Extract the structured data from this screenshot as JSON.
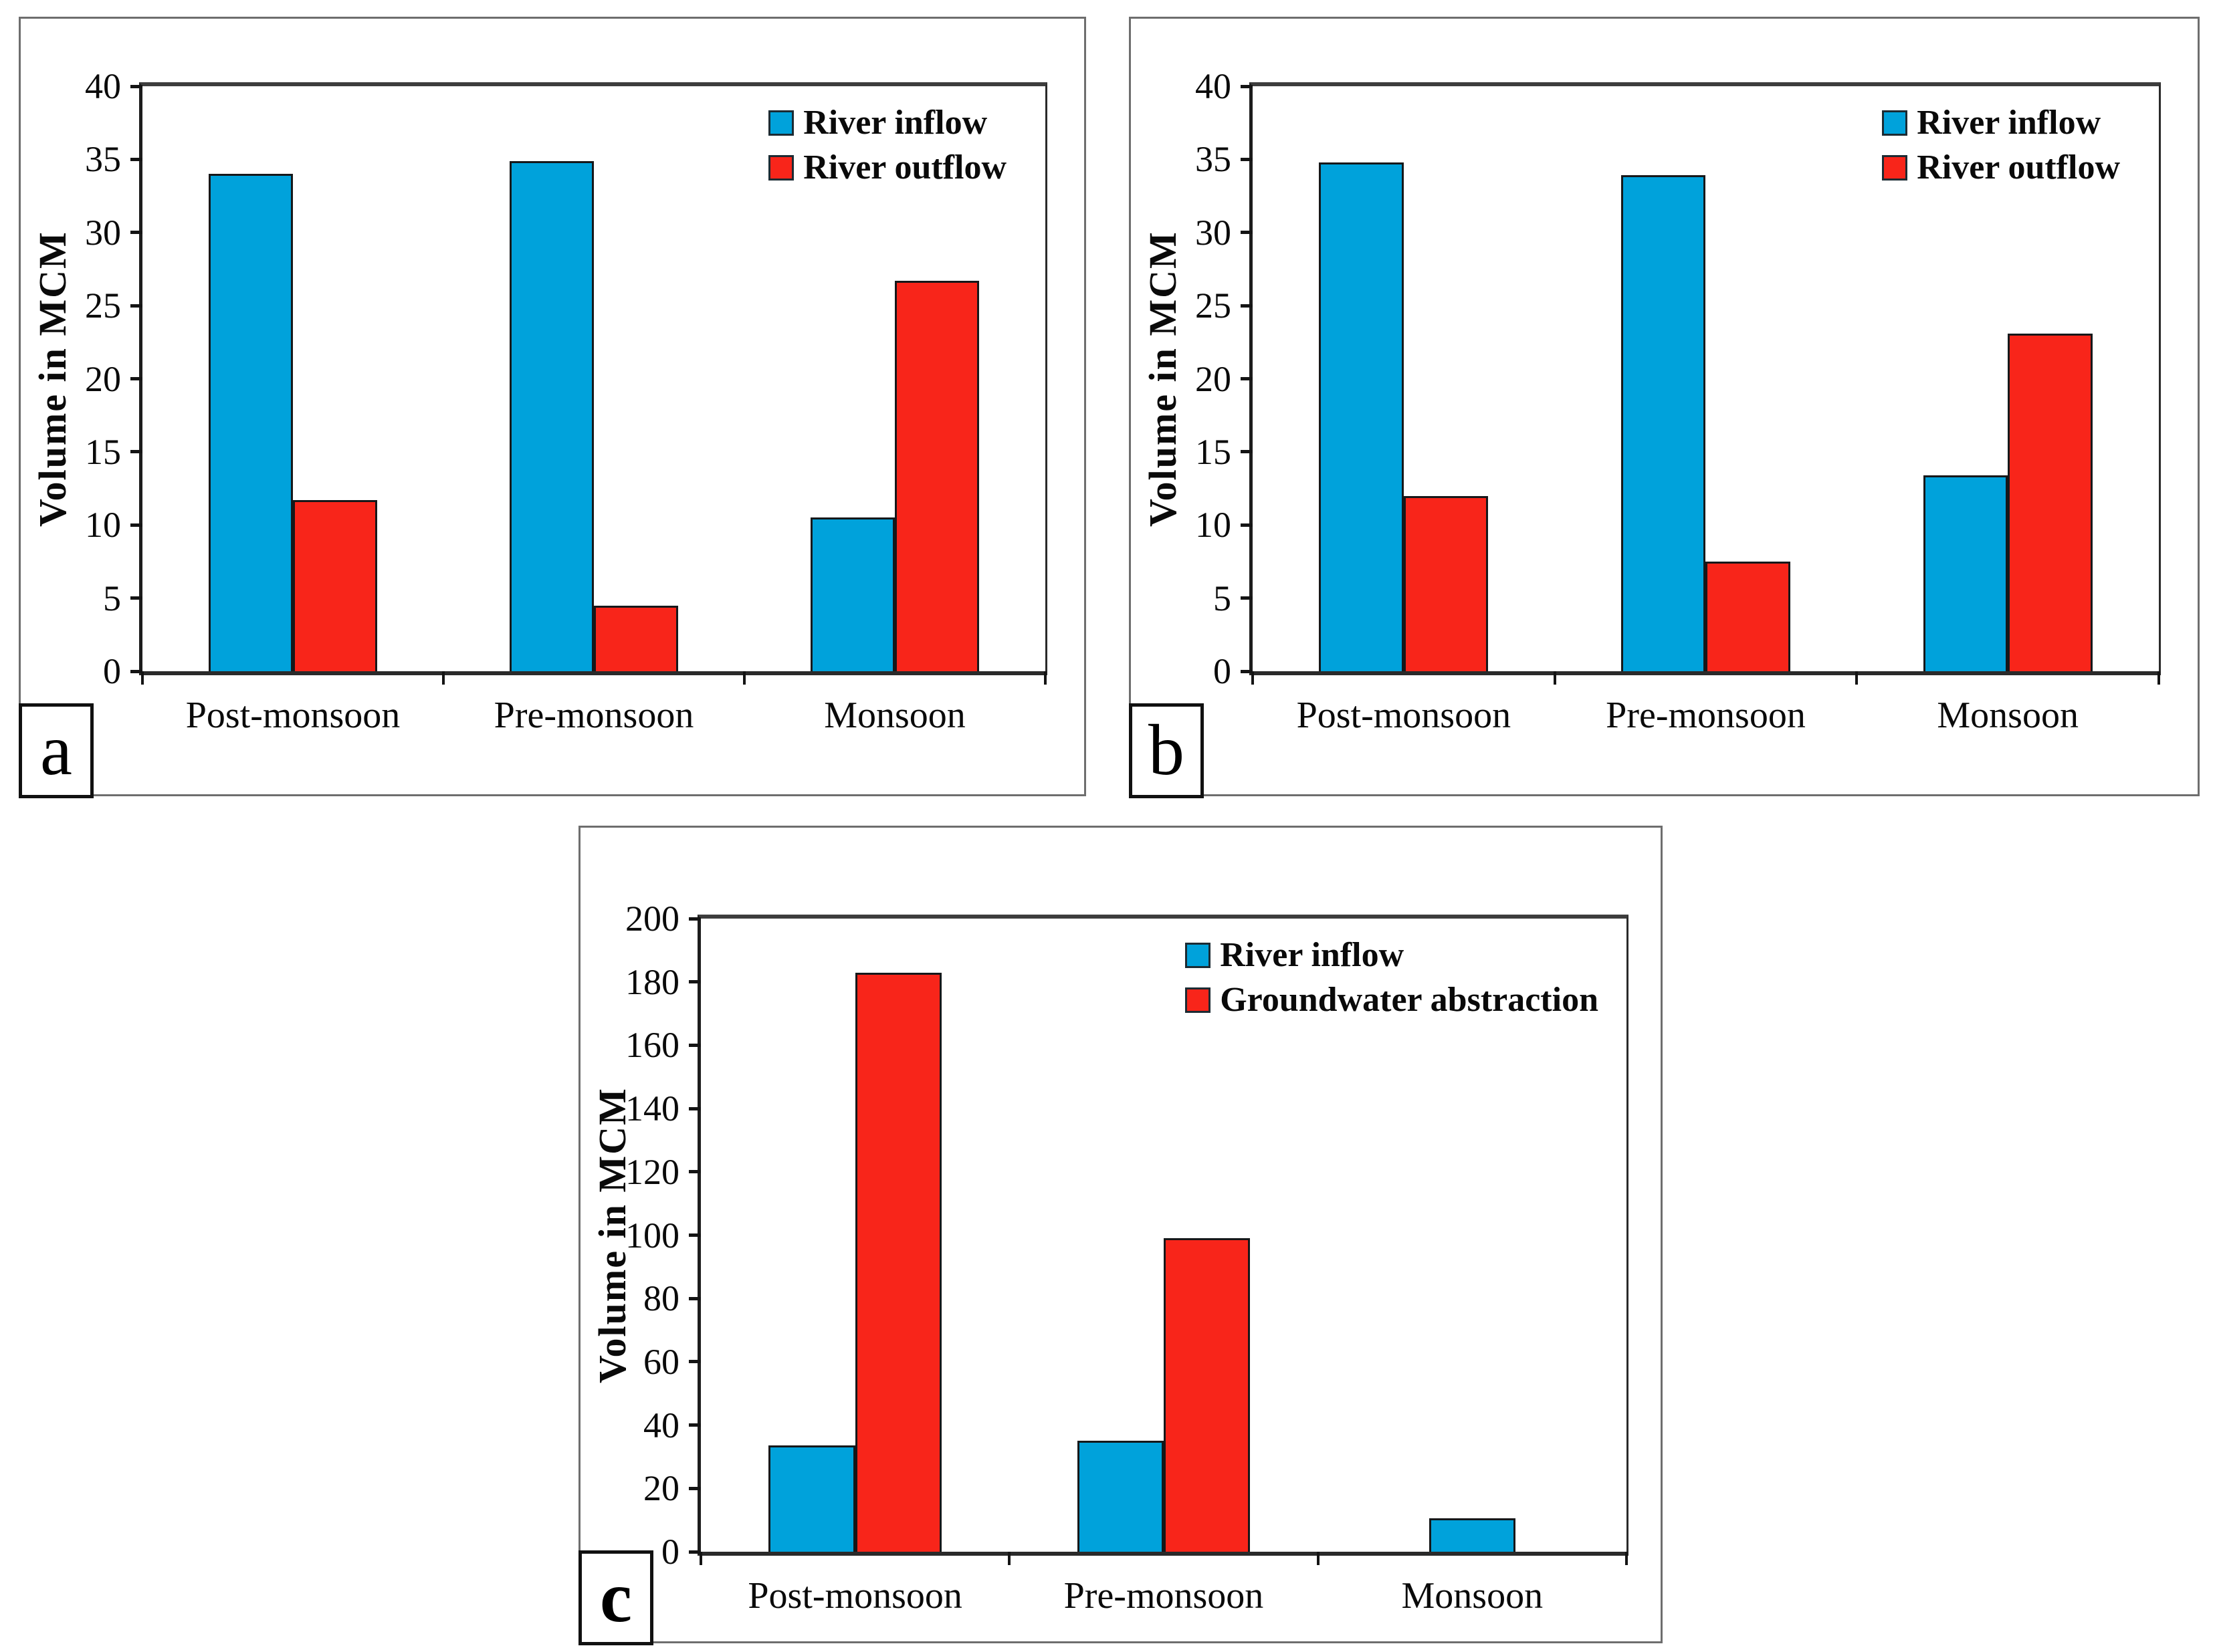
{
  "figure": {
    "description_note": "Three seasonal water-balance bar charts",
    "background": "#ffffff"
  },
  "colors": {
    "river_inflow_blue": "#00A2DB",
    "river_outflow_red": "#F8251A",
    "axis_black": "#141414"
  },
  "chart_data": [
    {
      "id": "a",
      "panel_label": "a",
      "type": "bar",
      "categories": [
        "Post-monsoon",
        "Pre-monsoon",
        "Monsoon"
      ],
      "series": [
        {
          "name": "River inflow",
          "color": "#00A2DB",
          "values": [
            34.0,
            34.9,
            10.5
          ]
        },
        {
          "name": "River outflow",
          "color": "#F8251A",
          "values": [
            11.7,
            4.5,
            26.7
          ]
        }
      ],
      "title": "",
      "xlabel": "",
      "ylabel": "Volume in MCM",
      "ylim": [
        0,
        40
      ],
      "ytick_step": 5,
      "grid": false,
      "legend_position": "top-right"
    },
    {
      "id": "b",
      "panel_label": "b",
      "type": "bar",
      "categories": [
        "Post-monsoon",
        "Pre-monsoon",
        "Monsoon"
      ],
      "series": [
        {
          "name": "River inflow",
          "color": "#00A2DB",
          "values": [
            34.8,
            33.9,
            13.4
          ]
        },
        {
          "name": "River outflow",
          "color": "#F8251A",
          "values": [
            12.0,
            7.5,
            23.1
          ]
        }
      ],
      "title": "",
      "xlabel": "",
      "ylabel": "Volume in MCM",
      "ylim": [
        0,
        40
      ],
      "ytick_step": 5,
      "grid": false,
      "legend_position": "top-right"
    },
    {
      "id": "c",
      "panel_label": "c",
      "panel_label_bold": true,
      "type": "bar",
      "categories": [
        "Post-monsoon",
        "Pre-monsoon",
        "Monsoon"
      ],
      "series": [
        {
          "name": "River inflow",
          "color": "#00A2DB",
          "values": [
            33.5,
            35.0,
            10.5
          ]
        },
        {
          "name": "Groundwater abstraction",
          "color": "#F8251A",
          "values": [
            183.0,
            99.0,
            0.0
          ]
        }
      ],
      "title": "",
      "xlabel": "",
      "ylabel": "Volume in MCM",
      "ylim": [
        0,
        200
      ],
      "ytick_step": 20,
      "grid": false,
      "legend_position": "top-right"
    }
  ]
}
